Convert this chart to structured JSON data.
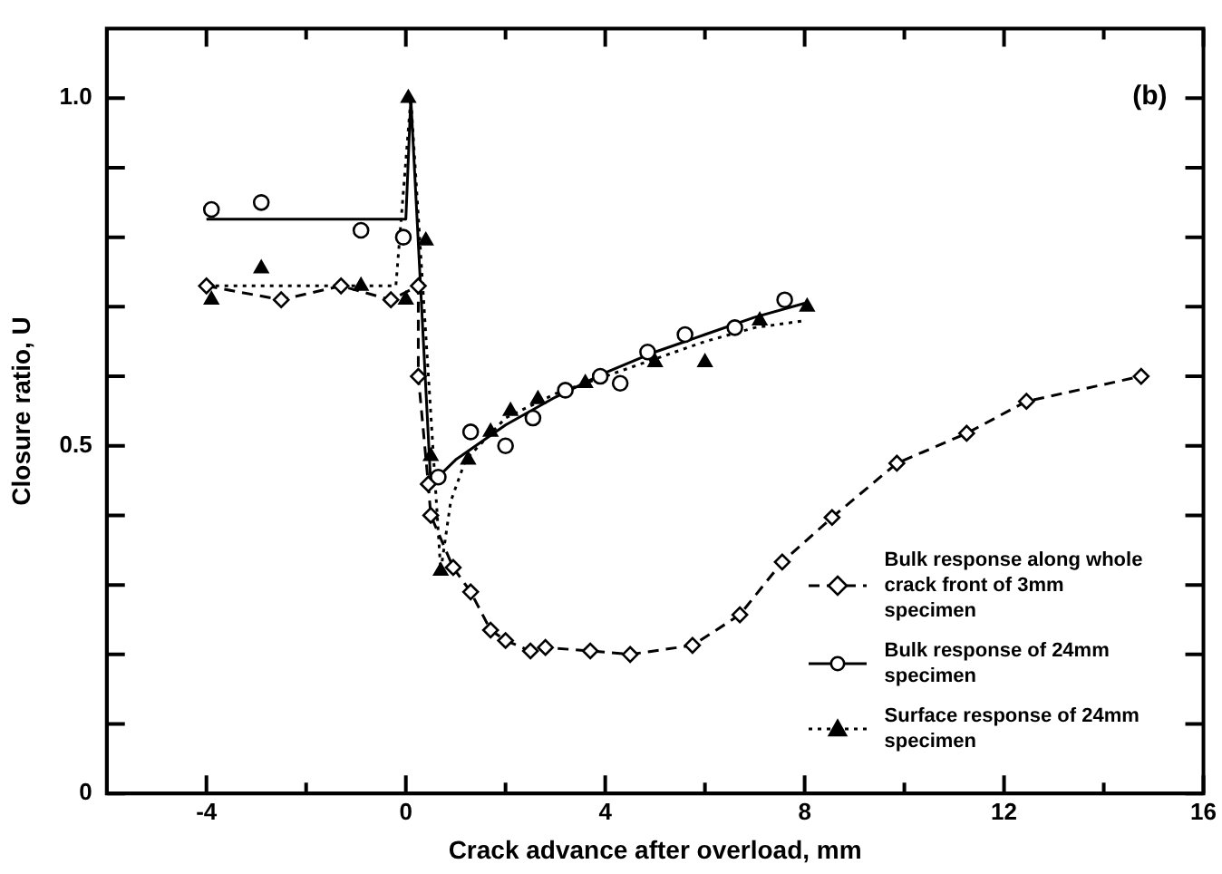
{
  "chart_data": {
    "type": "line",
    "xlabel": "Crack advance after overload, mm",
    "ylabel": "Closure ratio, U",
    "annotations": [
      "(b)"
    ],
    "xlim": [
      -6,
      16
    ],
    "ylim": [
      0,
      1.1
    ],
    "xticks": [
      {
        "value": -4,
        "label": "-4"
      },
      {
        "value": -2,
        "label": null
      },
      0,
      {
        "value": 2,
        "label": null
      },
      4,
      {
        "value": 6,
        "label": null
      },
      8,
      {
        "value": 10,
        "label": null
      },
      12,
      {
        "value": 14,
        "label": null
      },
      16
    ],
    "yticks": [
      0,
      {
        "value": 0.1,
        "label": null
      },
      {
        "value": 0.2,
        "label": null
      },
      {
        "value": 0.3,
        "label": null
      },
      {
        "value": 0.4,
        "label": null
      },
      0.5,
      {
        "value": 0.6,
        "label": null
      },
      {
        "value": 0.7,
        "label": null
      },
      {
        "value": 0.8,
        "label": null
      },
      {
        "value": 0.9,
        "label": null
      },
      {
        "value": 1,
        "label": "1.0"
      }
    ],
    "legend": "bottom right",
    "series": [
      {
        "name": "Bulk response along whole crack front of 3mm specimen",
        "marker": "diamond",
        "line_style": "dashed",
        "color": "#000000",
        "x": [
          -4,
          -2.5,
          -1.3,
          -0.3,
          0.25,
          0.25,
          0.45,
          0.5,
          0.95,
          1.3,
          1.7,
          2.0,
          2.5,
          2.8,
          3.7,
          4.5,
          5.75,
          6.7,
          7.55,
          8.55,
          9.85,
          11.25,
          12.45,
          14.75
        ],
        "values": [
          0.73,
          0.71,
          0.73,
          0.71,
          0.73,
          0.6,
          0.445,
          0.4,
          0.325,
          0.29,
          0.235,
          0.22,
          0.205,
          0.21,
          0.205,
          0.2,
          0.213,
          0.257,
          0.333,
          0.397,
          0.475,
          0.518,
          0.564,
          0.6
        ]
      },
      {
        "name": "Bulk response of 24mm specimen",
        "type": "scatter",
        "marker": "circle",
        "color": "#000000",
        "x": [
          -3.9,
          -2.9,
          -0.9,
          -0.05,
          0.65,
          1.3,
          2.0,
          2.55,
          3.2,
          3.9,
          4.3,
          4.85,
          5.6,
          6.6,
          7.6
        ],
        "values": [
          0.84,
          0.85,
          0.81,
          0.8,
          0.455,
          0.52,
          0.5,
          0.54,
          0.58,
          0.6,
          0.59,
          0.635,
          0.66,
          0.67,
          0.71
        ]
      },
      {
        "marker": "none",
        "line_style": "solid",
        "color": "#000000",
        "x": [
          -4,
          0,
          0.1,
          0.5,
          1,
          2,
          3,
          4,
          5,
          6,
          7,
          8
        ],
        "values": [
          0.826,
          0.826,
          1.0,
          0.445,
          0.48,
          0.53,
          0.57,
          0.605,
          0.635,
          0.66,
          0.685,
          0.705
        ]
      },
      {
        "name": "Surface response of 24mm specimen",
        "type": "scatter",
        "marker": "triangle",
        "color": "#000000",
        "x": [
          -3.9,
          -2.9,
          -0.9,
          0,
          0.05,
          0.4,
          0.5,
          0.7,
          1.25,
          1.7,
          2.1,
          2.65,
          3.6,
          5.0,
          6.0,
          7.1,
          8.05
        ],
        "values": [
          0.71,
          0.755,
          0.73,
          0.71,
          1.0,
          0.795,
          0.485,
          0.32,
          0.48,
          0.52,
          0.55,
          0.567,
          0.59,
          0.62,
          0.62,
          0.68,
          0.7
        ]
      },
      {
        "marker": "none",
        "line_style": "dotted",
        "color": "#000000",
        "x": [
          -4,
          -0.2,
          0.1,
          0.7,
          0.9,
          1.2,
          2,
          3,
          4,
          5,
          6,
          7,
          8
        ],
        "values": [
          0.73,
          0.73,
          1.0,
          0.32,
          0.42,
          0.48,
          0.54,
          0.575,
          0.6,
          0.625,
          0.65,
          0.67,
          0.68
        ]
      }
    ]
  }
}
